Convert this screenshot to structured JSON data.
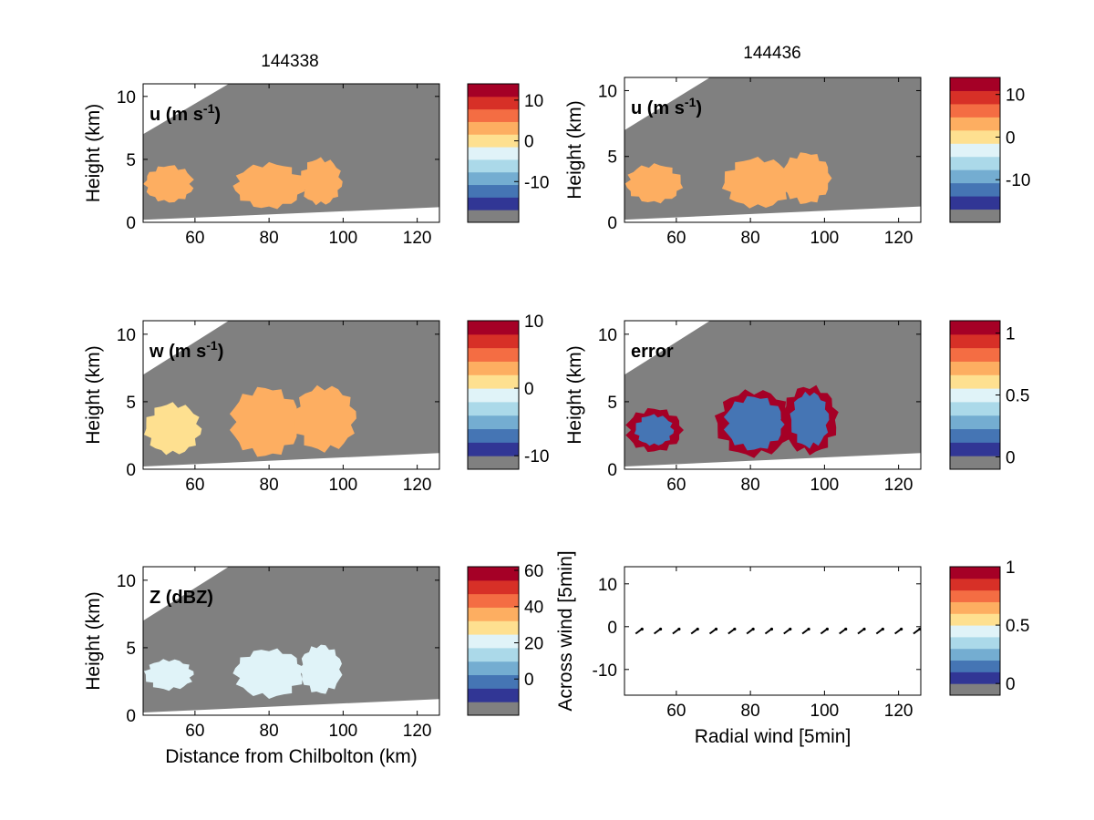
{
  "figure": {
    "titles": {
      "left": "144338",
      "right": "144436"
    },
    "colors": {
      "gray": "#808080",
      "colormap": [
        "#313695",
        "#4575b4",
        "#74add1",
        "#abd9e9",
        "#e0f3f8",
        "#fee090",
        "#fdae61",
        "#f46d43",
        "#d73027",
        "#a50026"
      ]
    }
  },
  "chart_data": [
    {
      "id": "u-left",
      "type": "heatmap",
      "title": "144338",
      "panel_label": "u (m s",
      "panel_label_sup": "-1",
      "panel_label_tail": ")",
      "xlabel": "",
      "ylabel": "Height (km)",
      "xlim": [
        46,
        126
      ],
      "ylim": [
        0,
        11
      ],
      "xticks": [
        60,
        80,
        100,
        120
      ],
      "yticks": [
        0,
        5,
        10
      ],
      "colorbar": {
        "range": [
          -20,
          14
        ],
        "ticks": [
          10,
          0,
          -10
        ]
      },
      "regions": [
        {
          "name": "cell-1",
          "x": [
            46,
            60
          ],
          "y": [
            1.5,
            4.6
          ],
          "value": 2
        },
        {
          "name": "cell-2",
          "x": [
            70,
            90
          ],
          "y": [
            1.0,
            4.8
          ],
          "value": 1
        },
        {
          "name": "cell-3",
          "x": [
            88,
            100
          ],
          "y": [
            1.3,
            5.2
          ],
          "value": 3
        }
      ]
    },
    {
      "id": "u-right",
      "type": "heatmap",
      "title": "144436",
      "panel_label": "u (m s",
      "panel_label_sup": "-1",
      "panel_label_tail": ")",
      "xlabel": "",
      "ylabel": "Height (km)",
      "xlim": [
        46,
        126
      ],
      "ylim": [
        0,
        11
      ],
      "xticks": [
        60,
        80,
        100,
        120
      ],
      "yticks": [
        0,
        5,
        10
      ],
      "colorbar": {
        "range": [
          -20,
          14
        ],
        "ticks": [
          10,
          0,
          -10
        ]
      },
      "regions": [
        {
          "name": "cell-1",
          "x": [
            46,
            62
          ],
          "y": [
            1.4,
            4.5
          ],
          "value": 2
        },
        {
          "name": "cell-2",
          "x": [
            72,
            92
          ],
          "y": [
            1.0,
            5.0
          ],
          "value": 1
        },
        {
          "name": "cell-3",
          "x": [
            88,
            102
          ],
          "y": [
            1.3,
            5.4
          ],
          "value": 3
        }
      ]
    },
    {
      "id": "w-left",
      "type": "heatmap",
      "panel_label": "w (m s",
      "panel_label_sup": "-1",
      "panel_label_tail": ")",
      "xlabel": "",
      "ylabel": "Height (km)",
      "xlim": [
        46,
        126
      ],
      "ylim": [
        0,
        11
      ],
      "xticks": [
        60,
        80,
        100,
        120
      ],
      "yticks": [
        0,
        5,
        10
      ],
      "colorbar": {
        "range": [
          -12,
          10
        ],
        "ticks": [
          10,
          0,
          -10
        ]
      },
      "regions": [
        {
          "name": "cell-1",
          "x": [
            46,
            62
          ],
          "y": [
            1.0,
            5.0
          ],
          "value": 1
        },
        {
          "name": "cell-2",
          "x": [
            69,
            89
          ],
          "y": [
            0.8,
            6.2
          ],
          "value": 2
        },
        {
          "name": "cell-3",
          "x": [
            86,
            104
          ],
          "y": [
            1.2,
            6.3
          ],
          "value": 3
        }
      ]
    },
    {
      "id": "error-right",
      "type": "heatmap",
      "panel_label": "error",
      "panel_label_sup": "",
      "panel_label_tail": "",
      "xlabel": "",
      "ylabel": "Height (km)",
      "xlim": [
        46,
        126
      ],
      "ylim": [
        0,
        11
      ],
      "xticks": [
        60,
        80,
        100,
        120
      ],
      "yticks": [
        0,
        5,
        10
      ],
      "colorbar": {
        "range": [
          -0.1,
          1.1
        ],
        "ticks": [
          1,
          0.5,
          0
        ]
      },
      "regions": [
        {
          "name": "cell-1",
          "x": [
            46,
            62
          ],
          "y": [
            1.2,
            4.6
          ],
          "value": 1
        },
        {
          "name": "cell-2",
          "x": [
            70,
            92
          ],
          "y": [
            0.8,
            6.0
          ],
          "value": 1
        },
        {
          "name": "cell-3",
          "x": [
            88,
            104
          ],
          "y": [
            1.0,
            6.3
          ],
          "value": 1
        }
      ]
    },
    {
      "id": "z-left",
      "type": "heatmap",
      "panel_label": "Z (dBZ)",
      "panel_label_sup": "",
      "panel_label_tail": "",
      "xlabel": "Distance from Chilbolton (km)",
      "ylabel": "Height (km)",
      "xlim": [
        46,
        126
      ],
      "ylim": [
        0,
        11
      ],
      "xticks": [
        60,
        80,
        100,
        120
      ],
      "yticks": [
        0,
        5,
        10
      ],
      "colorbar": {
        "range": [
          -20,
          62
        ],
        "ticks": [
          60,
          40,
          20,
          0
        ]
      },
      "regions": [
        {
          "name": "cell-1",
          "x": [
            46,
            60
          ],
          "y": [
            1.8,
            4.2
          ],
          "value": 15
        },
        {
          "name": "cell-2",
          "x": [
            70,
            90
          ],
          "y": [
            1.2,
            5.0
          ],
          "value": 18
        },
        {
          "name": "cell-3",
          "x": [
            88,
            100
          ],
          "y": [
            1.5,
            5.3
          ],
          "value": 20
        }
      ]
    },
    {
      "id": "wind-right",
      "type": "scatter",
      "panel_label": "",
      "panel_label_sup": "",
      "panel_label_tail": "",
      "xlabel": "Radial wind [5min]",
      "ylabel": "Across wind [5min]",
      "xlim": [
        46,
        126
      ],
      "ylim": [
        -16,
        14
      ],
      "xticks": [
        60,
        80,
        100,
        120
      ],
      "yticks": [
        10,
        0,
        -10
      ],
      "colorbar": {
        "range": [
          -0.1,
          1.0
        ],
        "ticks": [
          1,
          0.5,
          0
        ]
      },
      "x": [
        50,
        55,
        60,
        65,
        70,
        75,
        80,
        85,
        90,
        95,
        100,
        105,
        110,
        115,
        120,
        125
      ],
      "y": [
        -1.0,
        -1.0,
        -1.0,
        -1.0,
        -1.0,
        -1.0,
        -1.0,
        -1.0,
        -1.0,
        -1.0,
        -1.0,
        -1.0,
        -1.0,
        -1.0,
        -1.0,
        -1.0
      ]
    }
  ]
}
